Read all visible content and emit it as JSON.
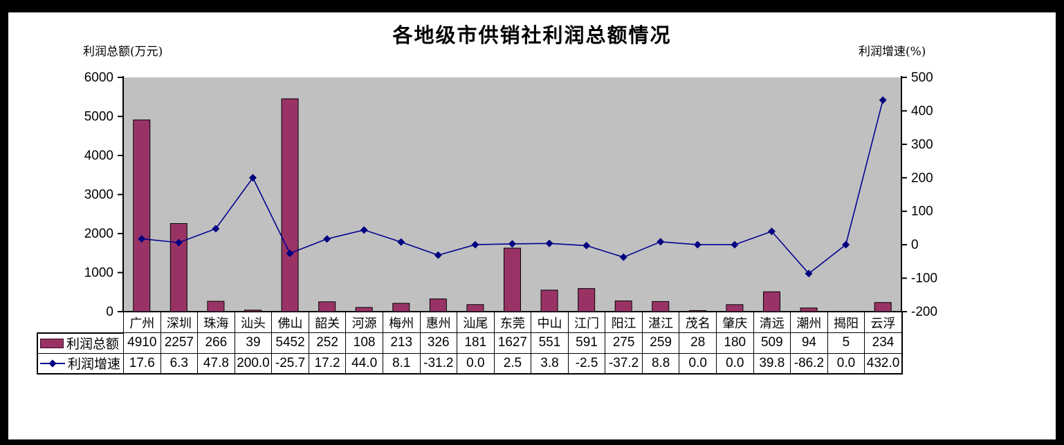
{
  "title": "各地级市供销社利润总额情况",
  "left_axis_title": "利润总额(万元)",
  "right_axis_title": "利润增速(%)",
  "colors": {
    "bar_fill": "#993366",
    "bar_outline": "#000000",
    "line_stroke": "#000090",
    "marker_fill": "#000080",
    "plot_bg": "#C0C0C0",
    "axis_color": "#000000",
    "text_color": "#000000"
  },
  "chart_data": {
    "type": "bar+line combo with data table",
    "categories": [
      "广州",
      "深圳",
      "珠海",
      "汕头",
      "佛山",
      "韶关",
      "河源",
      "梅州",
      "惠州",
      "汕尾",
      "东莞",
      "中山",
      "江门",
      "阳江",
      "湛江",
      "茂名",
      "肇庆",
      "清远",
      "潮州",
      "揭阳",
      "云浮"
    ],
    "series": [
      {
        "name": "利润总额",
        "type": "bar",
        "axis": "left",
        "values": [
          "4910",
          "2257",
          "266",
          "39",
          "5452",
          "252",
          "108",
          "213",
          "326",
          "181",
          "1627",
          "551",
          "591",
          "275",
          "259",
          "28",
          "180",
          "509",
          "94",
          "5",
          "234"
        ]
      },
      {
        "name": "利润增速",
        "type": "line",
        "axis": "right",
        "values": [
          "17.6",
          "6.3",
          "47.8",
          "200.0",
          "-25.7",
          "17.2",
          "44.0",
          "8.1",
          "-31.2",
          "0.0",
          "2.5",
          "3.8",
          "-2.5",
          "-37.2",
          "8.8",
          "0.0",
          "0.0",
          "39.8",
          "-86.2",
          "0.0",
          "432.0"
        ]
      }
    ],
    "left_axis": {
      "min": 0,
      "max": 6000,
      "tick_labels": [
        "6000",
        "5000",
        "4000",
        "3000",
        "2000",
        "1000",
        "0"
      ]
    },
    "right_axis": {
      "min": -200,
      "max": 500,
      "tick_labels": [
        "500",
        "400",
        "300",
        "200",
        "100",
        "0",
        "-100",
        "-200"
      ]
    },
    "grid": "off",
    "legend_position": "attached to data table, left of rows"
  }
}
